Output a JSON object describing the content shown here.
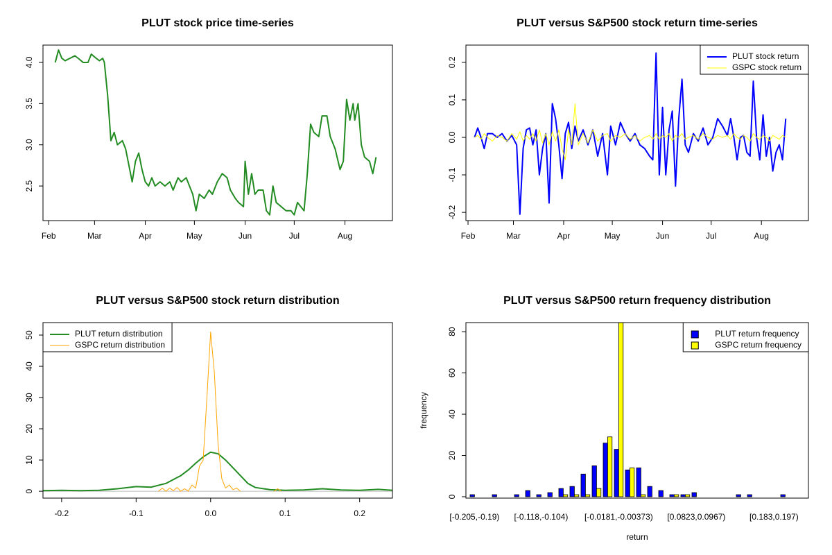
{
  "chart_data": [
    {
      "type": "line",
      "title": "PLUT stock price time-series",
      "color": "#228b22",
      "x": [
        36,
        38,
        40,
        42,
        45,
        48,
        50,
        53,
        56,
        58,
        61,
        63,
        65,
        66,
        68,
        70,
        72,
        74,
        77,
        79,
        81,
        83,
        85,
        87,
        89,
        91,
        93,
        95,
        97,
        100,
        103,
        106,
        108,
        111,
        113,
        116,
        120,
        122,
        124,
        127,
        130,
        132,
        135,
        138,
        141,
        143,
        146,
        148,
        151,
        152,
        154,
        156,
        158,
        160,
        163,
        165,
        167,
        169,
        171,
        174,
        177,
        180,
        182,
        184,
        186,
        188,
        190,
        192,
        194,
        197,
        199,
        202,
        204,
        207,
        210,
        212,
        214,
        216,
        218,
        219,
        221,
        223,
        225,
        228,
        230,
        232
      ],
      "values": [
        4.0,
        4.15,
        4.05,
        4.02,
        4.05,
        4.08,
        4.05,
        4.0,
        4.0,
        4.1,
        4.05,
        4.02,
        4.05,
        4.0,
        3.6,
        3.05,
        3.15,
        3.0,
        3.05,
        2.95,
        2.75,
        2.55,
        2.8,
        2.9,
        2.7,
        2.55,
        2.5,
        2.6,
        2.5,
        2.55,
        2.5,
        2.55,
        2.45,
        2.6,
        2.55,
        2.6,
        2.4,
        2.2,
        2.4,
        2.35,
        2.45,
        2.4,
        2.55,
        2.65,
        2.6,
        2.45,
        2.35,
        2.3,
        2.25,
        2.8,
        2.4,
        2.65,
        2.4,
        2.45,
        2.45,
        2.2,
        2.15,
        2.5,
        2.3,
        2.25,
        2.2,
        2.2,
        2.15,
        2.3,
        2.25,
        2.2,
        2.65,
        3.25,
        3.15,
        3.1,
        3.35,
        3.35,
        3.1,
        2.95,
        2.7,
        2.8,
        3.55,
        3.3,
        3.5,
        3.3,
        3.5,
        3.0,
        2.85,
        2.8,
        2.65,
        2.85
      ],
      "xlim": [
        28.5,
        242
      ],
      "xticks": [
        {
          "value": 32,
          "label": "Feb"
        },
        {
          "value": 60,
          "label": "Mar"
        },
        {
          "value": 91,
          "label": "Apr"
        },
        {
          "value": 121,
          "label": "May"
        },
        {
          "value": 152,
          "label": "Jun"
        },
        {
          "value": 182,
          "label": "Jul"
        },
        {
          "value": 213,
          "label": "Aug"
        }
      ],
      "ylim": [
        2.08,
        4.21
      ],
      "yticks": [
        2.5,
        {
          "value": 3,
          "label": "3.0"
        },
        3.5,
        {
          "value": 4,
          "label": "4.0"
        }
      ]
    },
    {
      "type": "line",
      "title": "PLUT versus S&P500 stock return time-series",
      "legend": "topright",
      "x": [
        36,
        38,
        40,
        42,
        44,
        47,
        50,
        53,
        56,
        59,
        62,
        64,
        66,
        68,
        70,
        72,
        74,
        76,
        78,
        80,
        82,
        84,
        86,
        88,
        90,
        92,
        94,
        96,
        98,
        100,
        103,
        106,
        109,
        112,
        115,
        118,
        120,
        123,
        126,
        129,
        132,
        135,
        138,
        141,
        144,
        146,
        148,
        150,
        152,
        154,
        156,
        158,
        160,
        162,
        164,
        166,
        168,
        171,
        174,
        177,
        180,
        183,
        186,
        189,
        192,
        194,
        196,
        198,
        200,
        202,
        204,
        206,
        208,
        210,
        212,
        214,
        216,
        218,
        220,
        222,
        224,
        226,
        228
      ],
      "series": [
        {
          "name": "PLUT stock return",
          "color": "#0000ff",
          "values": [
            0,
            0.025,
            0,
            -0.03,
            0.01,
            0.01,
            0,
            0.01,
            -0.01,
            0.005,
            -0.02,
            -0.205,
            -0.03,
            0.02,
            0.025,
            -0.02,
            0.02,
            -0.1,
            -0.03,
            0.01,
            -0.175,
            0.09,
            0.05,
            -0.02,
            -0.11,
            0.01,
            0.04,
            -0.03,
            0.03,
            -0.01,
            0.02,
            -0.02,
            0.02,
            -0.05,
            0.01,
            -0.1,
            0.03,
            -0.02,
            0.04,
            0.01,
            -0.01,
            0.01,
            -0.02,
            -0.03,
            -0.05,
            -0.06,
            0.225,
            -0.1,
            0.08,
            -0.1,
            0.02,
            0.07,
            -0.13,
            0.05,
            0.155,
            -0.02,
            -0.04,
            0.01,
            -0.01,
            0.025,
            -0.02,
            0,
            0.05,
            0.03,
            0.005,
            0.05,
            0,
            -0.06,
            0,
            0.005,
            -0.04,
            -0.05,
            0.15,
            0,
            -0.06,
            0.06,
            -0.05,
            0,
            -0.09,
            -0.04,
            -0.02,
            -0.06,
            0.05
          ]
        },
        {
          "name": "GSPC stock return",
          "color": "#ffff00",
          "values": [
            0,
            0.005,
            -0.005,
            0.01,
            0,
            -0.01,
            0.005,
            0,
            -0.01,
            0.01,
            -0.005,
            0.015,
            -0.01,
            0.005,
            -0.005,
            0.01,
            -0.01,
            0.02,
            -0.015,
            0.01,
            -0.02,
            0.015,
            -0.01,
            0.02,
            -0.03,
            -0.06,
            0.02,
            -0.02,
            0.09,
            -0.02,
            0.01,
            -0.015,
            0.02,
            -0.01,
            0.005,
            0.01,
            -0.01,
            0.005,
            0,
            0.01,
            -0.005,
            0.005,
            -0.01,
            0,
            0.005,
            -0.005,
            0.01,
            -0.005,
            0.005,
            0,
            0.01,
            -0.01,
            0.005,
            0,
            0.01,
            -0.005,
            0,
            0.005,
            -0.005,
            0.01,
            0,
            -0.005,
            0.005,
            0,
            0.005,
            -0.005,
            0.01,
            0,
            -0.005,
            0.005,
            0,
            -0.01,
            0.01,
            0,
            -0.005,
            0.005,
            0,
            -0.01,
            0.005,
            0,
            -0.005,
            0.005,
            0
          ]
        }
      ],
      "xlim": [
        30.7,
        242
      ],
      "xticks": [
        {
          "value": 32,
          "label": "Feb"
        },
        {
          "value": 60,
          "label": "Mar"
        },
        {
          "value": 91,
          "label": "Apr"
        },
        {
          "value": 121,
          "label": "May"
        },
        {
          "value": 152,
          "label": "Jun"
        },
        {
          "value": 182,
          "label": "Jul"
        },
        {
          "value": 213,
          "label": "Aug"
        }
      ],
      "ylim": [
        -0.222,
        0.246
      ],
      "yticks": [
        -0.2,
        -0.1,
        {
          "value": 0,
          "label": "0.0"
        },
        0.1,
        0.2
      ]
    },
    {
      "type": "line",
      "title": "PLUT versus S&P500 stock return distribution",
      "legend": "topleft",
      "zero_line": true,
      "series": [
        {
          "name": "PLUT return distribution",
          "color": "#228b22",
          "x": [
            -0.225,
            -0.2,
            -0.175,
            -0.15,
            -0.125,
            -0.1,
            -0.08,
            -0.06,
            -0.04,
            -0.03,
            -0.02,
            -0.01,
            0,
            0.01,
            0.02,
            0.03,
            0.04,
            0.05,
            0.06,
            0.08,
            0.1,
            0.125,
            0.15,
            0.175,
            0.2,
            0.225,
            0.244
          ],
          "values": [
            0.2,
            0.3,
            0.2,
            0.3,
            0.8,
            1.5,
            1.3,
            2.5,
            5,
            6.8,
            9,
            11,
            12.5,
            12,
            10,
            7.5,
            5,
            2.5,
            1.2,
            0.5,
            0.3,
            0.4,
            0.8,
            0.4,
            0.3,
            0.6,
            0.3
          ]
        },
        {
          "name": "GSPC return distribution",
          "color": "#ffa500",
          "x": [
            -0.07,
            -0.065,
            -0.06,
            -0.055,
            -0.05,
            -0.045,
            -0.04,
            -0.035,
            -0.03,
            -0.025,
            -0.02,
            -0.015,
            -0.01,
            -0.005,
            0,
            0.005,
            0.01,
            0.015,
            0.02,
            0.025,
            0.03,
            0.035,
            0.04,
            0.06,
            0.085,
            0.09,
            0.095
          ],
          "values": [
            0,
            1,
            0,
            1,
            0.2,
            1.2,
            0,
            0.8,
            0,
            2,
            1,
            8,
            10,
            30,
            51,
            38,
            15,
            4,
            1,
            2,
            0.5,
            1,
            0,
            null,
            0,
            0.8,
            0
          ]
        }
      ],
      "xlim": [
        -0.225,
        0.244
      ],
      "xticks": [
        -0.2,
        -0.1,
        {
          "value": 0,
          "label": "0.0"
        },
        0.1,
        0.2
      ],
      "ylim": [
        -2.2,
        54
      ],
      "yticks": [
        0,
        10,
        20,
        30,
        40,
        50
      ]
    },
    {
      "type": "bar",
      "title": "PLUT versus S&P500 return frequency distribution",
      "legend": "topright",
      "xlabel": "return",
      "ylabel": "frequency",
      "categories": [
        "[-0.205,-0.19)",
        null,
        null,
        null,
        null,
        null,
        "[-0.118,-0.104)",
        null,
        null,
        null,
        null,
        null,
        null,
        "[-0.0181,-0.00373)",
        null,
        null,
        null,
        null,
        null,
        null,
        "[0.0823,0.0967)",
        null,
        null,
        null,
        null,
        null,
        null,
        "[0.183,0.197)",
        null
      ],
      "series": [
        {
          "name": "PLUT return frequency",
          "color": "#0000ff",
          "values": [
            1,
            0,
            1,
            0,
            1,
            3,
            1,
            2,
            4,
            5,
            11,
            15,
            26,
            23,
            13,
            14,
            5,
            3,
            1,
            1,
            2,
            0,
            0,
            0,
            1,
            1,
            0,
            0,
            1
          ]
        },
        {
          "name": "GSPC return frequency",
          "color": "#ffff00",
          "values": [
            0,
            0,
            0,
            0,
            0,
            0,
            0,
            0,
            1,
            1,
            1,
            4,
            29,
            90,
            14,
            1,
            0,
            0,
            1,
            1,
            0,
            0,
            0,
            0,
            0,
            0,
            0,
            0,
            0
          ]
        }
      ],
      "ylim": [
        -0.67,
        84.4
      ],
      "yticks": [
        0,
        20,
        40,
        60,
        80
      ]
    }
  ]
}
